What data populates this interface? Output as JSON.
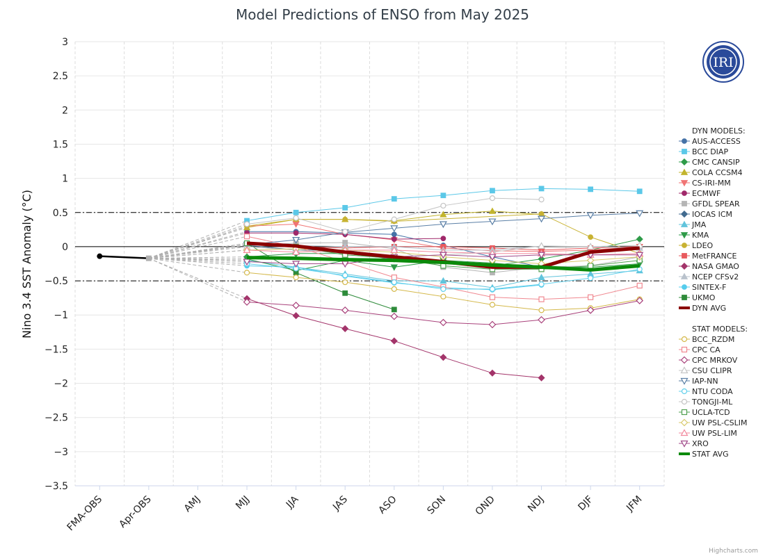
{
  "chart_data": {
    "type": "line",
    "title": "Model Predictions of ENSO from May 2025",
    "ylabel": "Nino 3.4 SST Anomaly (°C)",
    "xlabel": "",
    "categories": [
      "FMA-OBS",
      "Apr-OBS",
      "AMJ",
      "MJJ",
      "JJA",
      "JAS",
      "ASO",
      "SON",
      "OND",
      "NDJ",
      "DJF",
      "JFM"
    ],
    "ylim": [
      -3.5,
      3
    ],
    "yticks": [
      "3",
      "2.5",
      "2",
      "1.5",
      "1",
      "0.5",
      "0",
      "−0.5",
      "−1",
      "−1.5",
      "−2",
      "−2.5",
      "−3",
      "−3.5"
    ],
    "ytick_values": [
      3,
      2.5,
      2,
      1.5,
      1,
      0.5,
      0,
      -0.5,
      -1,
      -1.5,
      -2,
      -2.5,
      -3,
      -3.5
    ],
    "reference_lines": [
      0.5,
      -0.5
    ],
    "grid": true,
    "legend_position": "right",
    "observed": {
      "x": [
        "FMA-OBS",
        "Apr-OBS"
      ],
      "values": [
        -0.14,
        -0.17
      ]
    },
    "dyn_heading": "DYN MODELS:",
    "stat_heading": "STAT MODELS:",
    "series": [
      {
        "name": "AUS-ACCESS",
        "group": "dyn",
        "color": "#4572a7",
        "marker": "circle",
        "filled": true,
        "values": [
          null,
          null,
          null,
          0.22,
          0.22,
          0.2,
          0.18,
          0.02,
          -0.15,
          -0.3,
          null,
          null
        ]
      },
      {
        "name": "BCC DIAP",
        "group": "dyn",
        "color": "#5bc8e8",
        "marker": "square",
        "filled": true,
        "values": [
          null,
          null,
          null,
          0.38,
          0.5,
          0.57,
          0.7,
          0.75,
          0.82,
          0.85,
          0.84,
          0.81
        ]
      },
      {
        "name": "CMC CANSIP",
        "group": "dyn",
        "color": "#2e9b48",
        "marker": "diamond",
        "filled": true,
        "values": [
          null,
          null,
          null,
          -0.15,
          -0.1,
          -0.1,
          -0.18,
          -0.22,
          -0.28,
          -0.18,
          -0.05,
          0.11
        ]
      },
      {
        "name": "COLA CCSM4",
        "group": "dyn",
        "color": "#c2b42c",
        "marker": "triangle",
        "filled": true,
        "values": [
          null,
          null,
          null,
          0.28,
          0.4,
          0.4,
          0.38,
          0.47,
          0.52,
          0.47,
          null,
          null
        ]
      },
      {
        "name": "CS-IRI-MM",
        "group": "dyn",
        "color": "#f07474",
        "marker": "triangle-down",
        "filled": true,
        "values": [
          null,
          null,
          null,
          0.3,
          0.33,
          0.18,
          0.1,
          -0.02,
          -0.06,
          -0.07,
          -0.05,
          0.0
        ]
      },
      {
        "name": "ECMWF",
        "group": "dyn",
        "color": "#a0286a",
        "marker": "circle",
        "filled": true,
        "values": [
          null,
          null,
          null,
          0.2,
          0.2,
          0.18,
          0.11,
          0.12,
          null,
          null,
          null,
          null
        ]
      },
      {
        "name": "GFDL SPEAR",
        "group": "dyn",
        "color": "#b5b5b5",
        "marker": "square",
        "filled": true,
        "values": [
          null,
          null,
          null,
          0.02,
          0.05,
          0.06,
          -0.03,
          -0.3,
          -0.38,
          -0.3,
          -0.28,
          -0.15
        ]
      },
      {
        "name": "IOCAS ICM",
        "group": "dyn",
        "color": "#426b8f",
        "marker": "diamond",
        "filled": true,
        "values": [
          null,
          null,
          null,
          0.02,
          -0.05,
          -0.05,
          -0.15,
          -0.2,
          -0.3,
          -0.32,
          null,
          null
        ]
      },
      {
        "name": "JMA",
        "group": "dyn",
        "color": "#61c4dc",
        "marker": "triangle",
        "filled": true,
        "values": [
          null,
          null,
          null,
          -0.2,
          -0.3,
          -0.4,
          -0.5,
          -0.5,
          -0.6,
          -0.45,
          -0.4,
          -0.35
        ]
      },
      {
        "name": "KMA",
        "group": "dyn",
        "color": "#2e9b48",
        "marker": "triangle-down",
        "filled": true,
        "values": [
          null,
          null,
          null,
          -0.18,
          -0.35,
          -0.2,
          -0.3,
          -0.2,
          -0.24,
          -0.3,
          -0.3,
          -0.25
        ]
      },
      {
        "name": "LDEO",
        "group": "dyn",
        "color": "#c8b232",
        "marker": "circle",
        "filled": true,
        "values": [
          null,
          null,
          null,
          0.3,
          0.4,
          0.4,
          0.37,
          null,
          null,
          0.48,
          0.14,
          -0.1
        ]
      },
      {
        "name": "MetFRANCE",
        "group": "dyn",
        "color": "#e8595d",
        "marker": "square",
        "filled": true,
        "values": [
          null,
          null,
          null,
          0.05,
          0.0,
          -0.02,
          0.0,
          0.0,
          -0.02,
          -0.05,
          -0.02,
          0.0
        ]
      },
      {
        "name": "NASA GMAO",
        "group": "dyn",
        "color": "#a3346a",
        "marker": "diamond",
        "filled": true,
        "values": [
          null,
          null,
          null,
          -0.76,
          -1.01,
          -1.2,
          -1.38,
          -1.62,
          -1.85,
          -1.92,
          null,
          null
        ]
      },
      {
        "name": "NCEP CFSv2",
        "group": "dyn",
        "color": "#b9c2cc",
        "marker": "triangle",
        "filled": true,
        "values": [
          null,
          null,
          null,
          0.03,
          0.02,
          0.0,
          0.0,
          -0.05,
          -0.05,
          0.01,
          0.0,
          -0.02
        ]
      },
      {
        "name": "SINTEX-F",
        "group": "dyn",
        "color": "#55ccec",
        "marker": "circle",
        "filled": true,
        "values": [
          null,
          null,
          null,
          -0.28,
          -0.3,
          -0.43,
          -0.53,
          -0.6,
          -0.63,
          -0.56,
          null,
          null
        ]
      },
      {
        "name": "UKMO",
        "group": "dyn",
        "color": "#2e8b3a",
        "marker": "square",
        "filled": true,
        "values": [
          null,
          null,
          null,
          0.05,
          -0.38,
          -0.68,
          -0.92,
          null,
          null,
          null,
          null,
          null
        ]
      },
      {
        "name": "DYN AVG",
        "group": "dyn",
        "color": "#8b0000",
        "marker": "none",
        "filled": false,
        "avg": true,
        "values": [
          null,
          null,
          null,
          0.05,
          0.01,
          -0.08,
          -0.15,
          -0.22,
          -0.3,
          -0.3,
          -0.08,
          -0.02
        ]
      },
      {
        "name": "BCC_RZDM",
        "group": "stat",
        "color": "#d4b84a",
        "marker": "circle",
        "filled": false,
        "values": [
          null,
          null,
          null,
          -0.38,
          -0.45,
          -0.52,
          -0.62,
          -0.73,
          -0.85,
          -0.93,
          -0.9,
          -0.77
        ]
      },
      {
        "name": "CPC CA",
        "group": "stat",
        "color": "#f08890",
        "marker": "square",
        "filled": false,
        "values": [
          null,
          null,
          null,
          0.15,
          0.0,
          -0.22,
          -0.45,
          -0.59,
          -0.74,
          -0.77,
          -0.74,
          -0.57
        ]
      },
      {
        "name": "CPC MRKOV",
        "group": "stat",
        "color": "#a8407a",
        "marker": "diamond",
        "filled": false,
        "values": [
          null,
          null,
          null,
          -0.81,
          -0.86,
          -0.93,
          -1.02,
          -1.11,
          -1.14,
          -1.07,
          -0.93,
          -0.79
        ]
      },
      {
        "name": "CSU CLIPR",
        "group": "stat",
        "color": "#c6c6c6",
        "marker": "triangle",
        "filled": false,
        "values": [
          null,
          null,
          null,
          0.0,
          -0.05,
          -0.1,
          -0.15,
          -0.12,
          -0.08,
          0.01,
          0.0,
          0.02
        ]
      },
      {
        "name": "IAP-NN",
        "group": "stat",
        "color": "#5a7fa6",
        "marker": "triangle-down",
        "filled": false,
        "values": [
          null,
          null,
          null,
          0.03,
          0.1,
          0.21,
          0.27,
          0.33,
          0.37,
          0.41,
          0.46,
          0.49
        ]
      },
      {
        "name": "NTU CODA",
        "group": "stat",
        "color": "#62d0ec",
        "marker": "circle",
        "filled": false,
        "values": [
          null,
          null,
          null,
          -0.25,
          -0.32,
          -0.42,
          -0.52,
          -0.62,
          -0.62,
          -0.55,
          -0.46,
          -0.33
        ]
      },
      {
        "name": "TONGJI-ML",
        "group": "stat",
        "color": "#c4c4c4",
        "marker": "circle",
        "filled": false,
        "values": [
          null,
          null,
          null,
          0.33,
          0.42,
          0.22,
          0.4,
          0.6,
          0.71,
          0.69,
          null,
          null
        ]
      },
      {
        "name": "UCLA-TCD",
        "group": "stat",
        "color": "#50a050",
        "marker": "square",
        "filled": false,
        "values": [
          null,
          null,
          null,
          0.05,
          0.0,
          -0.12,
          -0.17,
          -0.28,
          -0.33,
          -0.33,
          -0.28,
          -0.2
        ]
      },
      {
        "name": "UW PSL-CSLIM",
        "group": "stat",
        "color": "#d8c86a",
        "marker": "diamond",
        "filled": false,
        "values": [
          null,
          null,
          null,
          -0.05,
          -0.03,
          -0.05,
          -0.08,
          -0.15,
          -0.2,
          -0.25,
          -0.2,
          -0.15
        ]
      },
      {
        "name": "UW PSL-LIM",
        "group": "stat",
        "color": "#f28a9e",
        "marker": "triangle",
        "filled": false,
        "values": [
          null,
          null,
          null,
          -0.05,
          -0.08,
          -0.05,
          -0.05,
          -0.08,
          -0.1,
          -0.1,
          -0.12,
          -0.1
        ]
      },
      {
        "name": "XRO",
        "group": "stat",
        "color": "#a04a8a",
        "marker": "triangle-down",
        "filled": false,
        "values": [
          null,
          null,
          null,
          -0.22,
          -0.25,
          -0.25,
          -0.15,
          -0.12,
          -0.15,
          -0.12,
          -0.12,
          -0.12
        ]
      },
      {
        "name": "STAT AVG",
        "group": "stat",
        "color": "#0a8a0a",
        "marker": "none",
        "filled": false,
        "avg": true,
        "values": [
          null,
          null,
          null,
          -0.16,
          -0.17,
          -0.19,
          -0.2,
          -0.23,
          -0.27,
          -0.3,
          -0.34,
          -0.28
        ]
      }
    ]
  },
  "logo": {
    "text": "IRI"
  },
  "credits": "Highcharts.com"
}
